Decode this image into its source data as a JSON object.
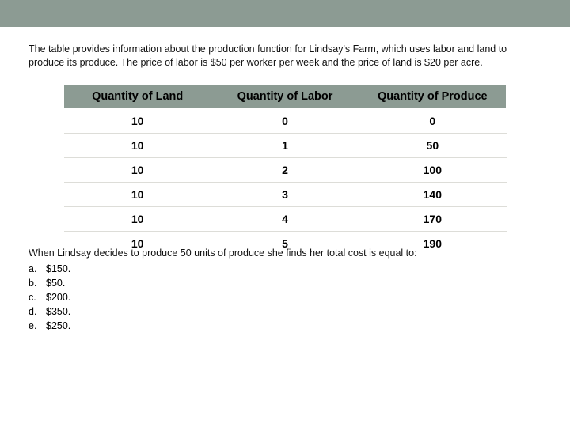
{
  "colors": {
    "band": "#8c9b93",
    "header_bg": "#8c9b93",
    "row_border": "#ddddd8",
    "text": "#000000",
    "background": "#ffffff"
  },
  "intro": "The table provides information about the production function for Lindsay's Farm, which uses labor and land to produce its produce. The price of labor is $50 per worker per week and the price of land is $20 per acre.",
  "table": {
    "columns": [
      "Quantity of Land",
      "Quantity of Labor",
      "Quantity of Produce"
    ],
    "rows": [
      [
        "10",
        "0",
        "0"
      ],
      [
        "10",
        "1",
        "50"
      ],
      [
        "10",
        "2",
        "100"
      ],
      [
        "10",
        "3",
        "140"
      ],
      [
        "10",
        "4",
        "170"
      ],
      [
        "10",
        "5",
        "190"
      ]
    ],
    "header_fontsize": 14.5,
    "cell_fontsize": 14,
    "header_bg": "#8c9b93",
    "row_border_color": "#ddddd8"
  },
  "question": "When Lindsay decides to produce 50 units of produce she finds her total cost is equal to:",
  "options": [
    {
      "letter": "a.",
      "text": "$150."
    },
    {
      "letter": "b.",
      "text": "$50."
    },
    {
      "letter": "c.",
      "text": "$200."
    },
    {
      "letter": "d.",
      "text": "$350."
    },
    {
      "letter": "e.",
      "text": "$250."
    }
  ]
}
